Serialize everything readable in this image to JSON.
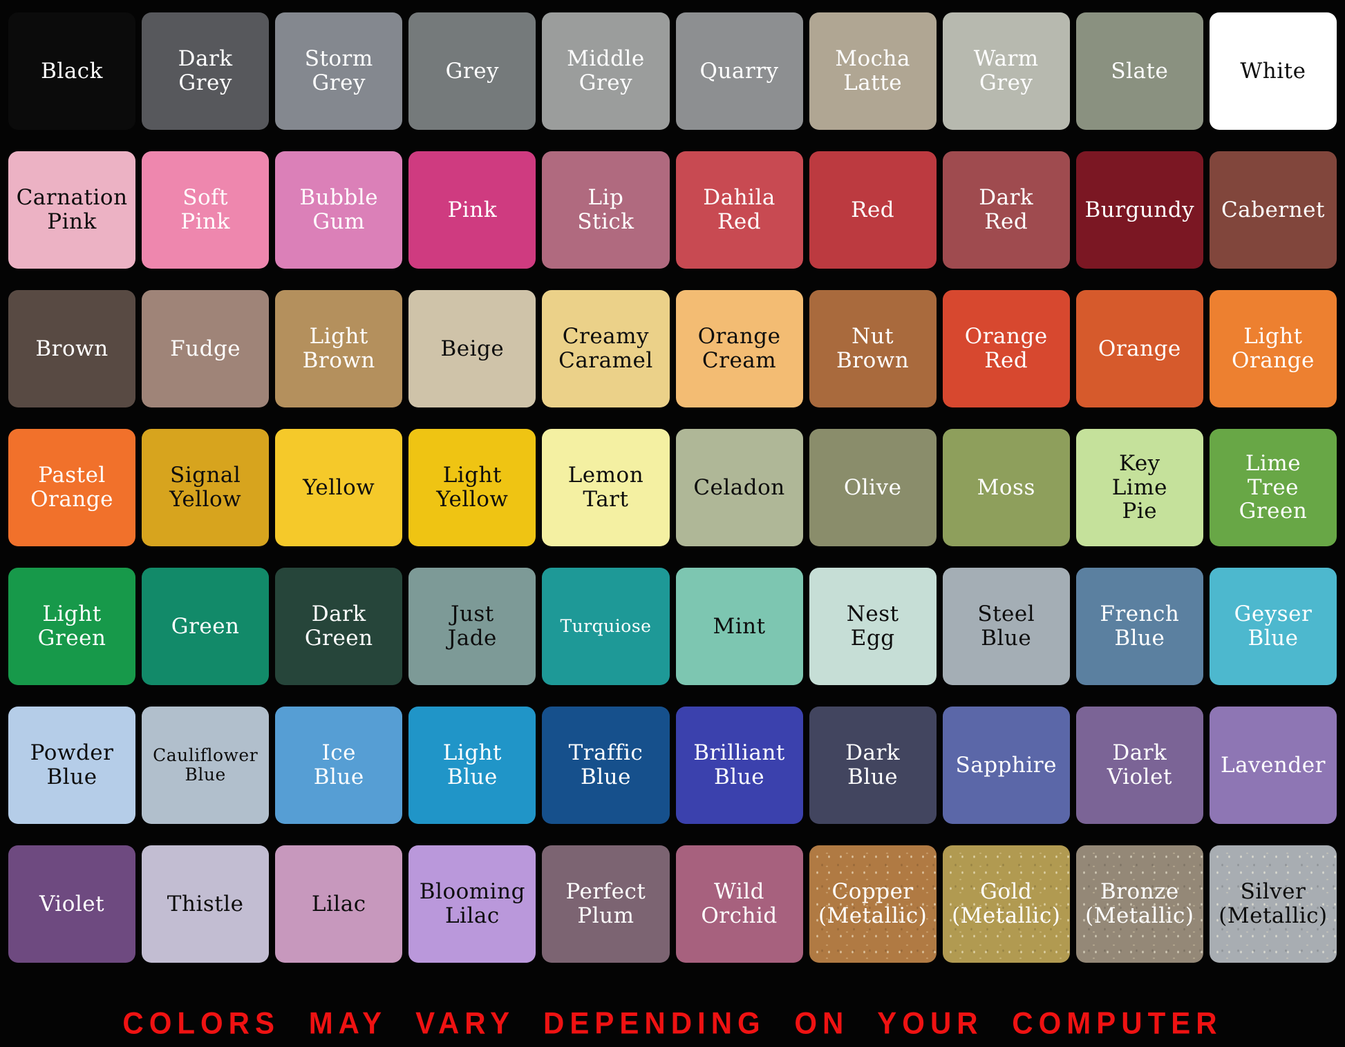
{
  "chart_data": {
    "type": "table",
    "title": "Color swatch chart",
    "columns": 10,
    "layout": "7 rows by 10 columns of rounded color swatches on black background",
    "rows": [
      [
        {
          "label": "Black",
          "hex": "#0b0b0b",
          "label_color": "#ffffff"
        },
        {
          "label": "Dark\nGrey",
          "hex": "#57585c",
          "label_color": "#ffffff"
        },
        {
          "label": "Storm\nGrey",
          "hex": "#84888f",
          "label_color": "#ffffff"
        },
        {
          "label": "Grey",
          "hex": "#757a7b",
          "label_color": "#ffffff"
        },
        {
          "label": "Middle\nGrey",
          "hex": "#9b9d9c",
          "label_color": "#ffffff"
        },
        {
          "label": "Quarry",
          "hex": "#8d8f91",
          "label_color": "#ffffff"
        },
        {
          "label": "Mocha\nLatte",
          "hex": "#b0a693",
          "label_color": "#ffffff"
        },
        {
          "label": "Warm\nGrey",
          "hex": "#b7b9af",
          "label_color": "#ffffff"
        },
        {
          "label": "Slate",
          "hex": "#8a9180",
          "label_color": "#ffffff"
        },
        {
          "label": "White",
          "hex": "#ffffff",
          "label_color": "#0d0d0d"
        }
      ],
      [
        {
          "label": "Carnation\nPink",
          "hex": "#ecb2c4",
          "label_color": "#0d0d0d"
        },
        {
          "label": "Soft\nPink",
          "hex": "#ee87ae",
          "label_color": "#ffffff"
        },
        {
          "label": "Bubble\nGum",
          "hex": "#db80b8",
          "label_color": "#ffffff"
        },
        {
          "label": "Pink",
          "hex": "#cf3b80",
          "label_color": "#ffffff"
        },
        {
          "label": "Lip\nStick",
          "hex": "#b06a7f",
          "label_color": "#ffffff"
        },
        {
          "label": "Dahila\nRed",
          "hex": "#c84a52",
          "label_color": "#ffffff"
        },
        {
          "label": "Red",
          "hex": "#bc3a40",
          "label_color": "#ffffff"
        },
        {
          "label": "Dark\nRed",
          "hex": "#9f4b4f",
          "label_color": "#ffffff"
        },
        {
          "label": "Burgundy",
          "hex": "#7b1723",
          "label_color": "#ffffff"
        },
        {
          "label": "Cabernet",
          "hex": "#81463c",
          "label_color": "#ffffff"
        }
      ],
      [
        {
          "label": "Brown",
          "hex": "#584a43",
          "label_color": "#ffffff"
        },
        {
          "label": "Fudge",
          "hex": "#9f8478",
          "label_color": "#ffffff"
        },
        {
          "label": "Light\nBrown",
          "hex": "#b4905d",
          "label_color": "#ffffff"
        },
        {
          "label": "Beige",
          "hex": "#cfc3a9",
          "label_color": "#0d0d0d"
        },
        {
          "label": "Creamy\nCaramel",
          "hex": "#ebd189",
          "label_color": "#0d0d0d"
        },
        {
          "label": "Orange\nCream",
          "hex": "#f3bc73",
          "label_color": "#0d0d0d"
        },
        {
          "label": "Nut\nBrown",
          "hex": "#a96a3d",
          "label_color": "#ffffff"
        },
        {
          "label": "Orange\nRed",
          "hex": "#d7482f",
          "label_color": "#ffffff"
        },
        {
          "label": "Orange",
          "hex": "#d65a2c",
          "label_color": "#ffffff"
        },
        {
          "label": "Light\nOrange",
          "hex": "#ed8030",
          "label_color": "#ffffff"
        }
      ],
      [
        {
          "label": "Pastel\nOrange",
          "hex": "#f1712b",
          "label_color": "#ffffff"
        },
        {
          "label": "Signal\nYellow",
          "hex": "#d7a41e",
          "label_color": "#0d0d0d"
        },
        {
          "label": "Yellow",
          "hex": "#f5c92a",
          "label_color": "#0d0d0d"
        },
        {
          "label": "Light\nYellow",
          "hex": "#efc413",
          "label_color": "#0d0d0d"
        },
        {
          "label": "Lemon\nTart",
          "hex": "#f4f0a2",
          "label_color": "#0d0d0d"
        },
        {
          "label": "Celadon",
          "hex": "#afb797",
          "label_color": "#0d0d0d"
        },
        {
          "label": "Olive",
          "hex": "#8a8d6b",
          "label_color": "#ffffff"
        },
        {
          "label": "Moss",
          "hex": "#8e9f5c",
          "label_color": "#ffffff"
        },
        {
          "label": "Key\nLime\nPie",
          "hex": "#c5e19b",
          "label_color": "#0d0d0d"
        },
        {
          "label": "Lime\nTree\nGreen",
          "hex": "#68a746",
          "label_color": "#ffffff"
        }
      ],
      [
        {
          "label": "Light\nGreen",
          "hex": "#17994a",
          "label_color": "#ffffff"
        },
        {
          "label": "Green",
          "hex": "#128a69",
          "label_color": "#ffffff"
        },
        {
          "label": "Dark\nGreen",
          "hex": "#26453a",
          "label_color": "#ffffff"
        },
        {
          "label": "Just\nJade",
          "hex": "#7d9a97",
          "label_color": "#0d0d0d"
        },
        {
          "label": "Turquiose",
          "hex": "#1e9997",
          "label_color": "#ffffff",
          "small_label": true
        },
        {
          "label": "Mint",
          "hex": "#7dc6b1",
          "label_color": "#0d0d0d"
        },
        {
          "label": "Nest\nEgg",
          "hex": "#c6ded6",
          "label_color": "#0d0d0d"
        },
        {
          "label": "Steel\nBlue",
          "hex": "#a4aeb5",
          "label_color": "#0d0d0d"
        },
        {
          "label": "French\nBlue",
          "hex": "#5b80a0",
          "label_color": "#ffffff"
        },
        {
          "label": "Geyser\nBlue",
          "hex": "#4db8ce",
          "label_color": "#ffffff"
        }
      ],
      [
        {
          "label": "Powder\nBlue",
          "hex": "#b5cde8",
          "label_color": "#0d0d0d"
        },
        {
          "label": "Cauliflower\nBlue",
          "hex": "#b1bfcc",
          "label_color": "#0d0d0d",
          "small_label": true
        },
        {
          "label": "Ice\nBlue",
          "hex": "#569ed4",
          "label_color": "#ffffff"
        },
        {
          "label": "Light\nBlue",
          "hex": "#2095c8",
          "label_color": "#ffffff"
        },
        {
          "label": "Traffic\nBlue",
          "hex": "#16508c",
          "label_color": "#ffffff"
        },
        {
          "label": "Brilliant\nBlue",
          "hex": "#3b41ad",
          "label_color": "#ffffff"
        },
        {
          "label": "Dark\nBlue",
          "hex": "#42455f",
          "label_color": "#ffffff"
        },
        {
          "label": "Sapphire",
          "hex": "#5b67a8",
          "label_color": "#ffffff"
        },
        {
          "label": "Dark\nViolet",
          "hex": "#7b6496",
          "label_color": "#ffffff"
        },
        {
          "label": "Lavender",
          "hex": "#8e76b4",
          "label_color": "#ffffff"
        }
      ],
      [
        {
          "label": "Violet",
          "hex": "#6e4a80",
          "label_color": "#ffffff"
        },
        {
          "label": "Thistle",
          "hex": "#c2bdd2",
          "label_color": "#0d0d0d"
        },
        {
          "label": "Lilac",
          "hex": "#c798bd",
          "label_color": "#0d0d0d"
        },
        {
          "label": "Blooming\nLilac",
          "hex": "#ba98db",
          "label_color": "#0d0d0d"
        },
        {
          "label": "Perfect\nPlum",
          "hex": "#7c6472",
          "label_color": "#ffffff"
        },
        {
          "label": "Wild\nOrchid",
          "hex": "#a7617e",
          "label_color": "#ffffff"
        },
        {
          "label": "Copper\n(Metallic)",
          "hex": "#b07a43",
          "label_color": "#ffffff",
          "metallic": true
        },
        {
          "label": "Gold\n(Metallic)",
          "hex": "#b19a51",
          "label_color": "#ffffff",
          "metallic": true
        },
        {
          "label": "Bronze\n(Metallic)",
          "hex": "#948877",
          "label_color": "#ffffff",
          "metallic": true
        },
        {
          "label": "Silver\n(Metallic)",
          "hex": "#a8adb2",
          "label_color": "#0d0d0d",
          "metallic": true
        }
      ]
    ]
  },
  "footer": {
    "disclaimer": "COLORS MAY VARY DEPENDING ON YOUR COMPUTER",
    "color": "#ef1212"
  },
  "background_color": "#040404"
}
